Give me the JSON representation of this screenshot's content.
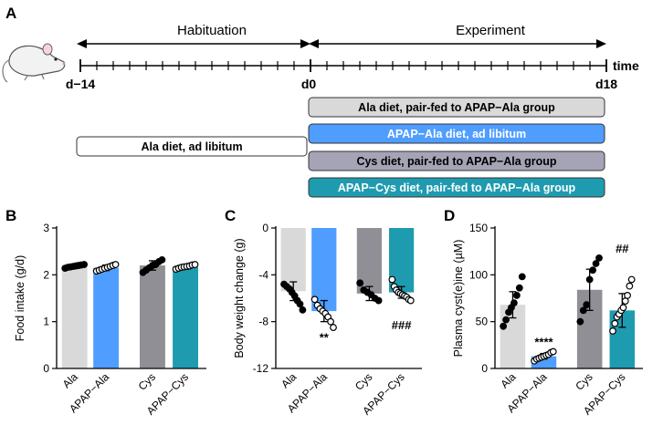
{
  "panels": {
    "A": "A",
    "B": "B",
    "C": "C",
    "D": "D"
  },
  "timeline": {
    "phase_left": "Habituation",
    "phase_right": "Experiment",
    "time_label": "time",
    "ticks": [
      "d−14",
      "d0",
      "d18"
    ],
    "n_divisions": 32
  },
  "diet_boxes": [
    {
      "label": "Ala diet, pair-fed to APAP−Ala  group",
      "fill": "#d9d9d9",
      "text_color": "#000000"
    },
    {
      "label": "APAP−Ala  diet, ad libitum",
      "fill": "#4f9dff",
      "text_color": "#ffffff"
    },
    {
      "label": "Cys diet, pair-fed to APAP−Ala  group",
      "fill": "#a4a4b6",
      "text_color": "#000000"
    },
    {
      "label": "APAP−Cys diet, pair-fed to APAP−Ala group",
      "fill": "#1f9bb0",
      "text_color": "#ffffff"
    },
    {
      "label": "Ala diet, ad libitum",
      "fill": "#ffffff",
      "text_color": "#000000"
    }
  ],
  "colors": {
    "Ala": "#d9d9d9",
    "APAP−Ala": "#4f9dff",
    "Cys": "#8f8f95",
    "APAP−Cys": "#1f9bb0"
  },
  "chart_data": [
    {
      "panel": "B",
      "type": "bar",
      "title": "",
      "ylabel": "Food intake (g/d)",
      "categories": [
        "Ala",
        "APAP−Ala",
        "Cys",
        "APAP−Cys"
      ],
      "values": [
        2.18,
        2.15,
        2.2,
        2.17
      ],
      "errors": [
        0.04,
        0.06,
        0.1,
        0.05
      ],
      "points": [
        [
          2.14,
          2.16,
          2.17,
          2.18,
          2.19,
          2.2,
          2.21,
          2.22
        ],
        [
          2.08,
          2.1,
          2.12,
          2.14,
          2.16,
          2.18,
          2.2,
          2.22
        ],
        [
          2.05,
          2.1,
          2.15,
          2.2,
          2.22,
          2.28,
          2.32
        ],
        [
          2.12,
          2.14,
          2.16,
          2.17,
          2.18,
          2.19,
          2.21,
          2.22
        ]
      ],
      "point_style": [
        "filled",
        "open",
        "filled",
        "open"
      ],
      "ylim": [
        0,
        3
      ],
      "yticks": [
        "0",
        "1",
        "2",
        "3"
      ],
      "annotations": [
        "",
        "",
        "",
        ""
      ]
    },
    {
      "panel": "C",
      "type": "bar",
      "title": "",
      "ylabel": "Body weight change (g)",
      "categories": [
        "Ala",
        "APAP−Ala",
        "Cys",
        "APAP−Cys"
      ],
      "values": [
        -5.4,
        -7.1,
        -5.6,
        -5.5
      ],
      "errors": [
        0.8,
        0.9,
        0.6,
        0.5
      ],
      "points": [
        [
          -4.8,
          -5.0,
          -5.2,
          -5.5,
          -5.8,
          -6.2,
          -6.5,
          -7.0
        ],
        [
          -6.1,
          -6.6,
          -6.9,
          -7.1,
          -7.3,
          -7.6,
          -8.0,
          -8.5
        ],
        [
          -4.7,
          -5.3,
          -5.5,
          -5.7,
          -6.0,
          -6.2
        ],
        [
          -4.4,
          -5.0,
          -5.3,
          -5.5,
          -5.6,
          -5.7,
          -5.8,
          -5.9,
          -6.1,
          -6.2
        ]
      ],
      "point_style": [
        "filled",
        "open",
        "filled",
        "open"
      ],
      "ylim": [
        -12,
        0
      ],
      "yticks": [
        "0",
        "-4",
        "-8",
        "-12"
      ],
      "annotations": [
        "",
        "**",
        "",
        "###"
      ]
    },
    {
      "panel": "D",
      "type": "bar",
      "title": "",
      "ylabel": "Plasma cyst(e)ine (µM)",
      "categories": [
        "Ala",
        "APAP−Ala",
        "Cys",
        "APAP−Cys"
      ],
      "values": [
        68,
        13,
        84,
        62
      ],
      "errors": [
        14,
        3,
        22,
        18
      ],
      "points": [
        [
          45,
          52,
          60,
          65,
          70,
          78,
          86,
          98
        ],
        [
          8,
          10,
          11,
          12,
          13,
          14,
          15,
          17,
          18
        ],
        [
          50,
          62,
          68,
          95,
          105,
          112,
          118
        ],
        [
          40,
          48,
          55,
          58,
          62,
          65,
          72,
          78,
          88,
          95
        ]
      ],
      "point_style": [
        "filled",
        "open",
        "filled",
        "open"
      ],
      "ylim": [
        0,
        150
      ],
      "yticks": [
        "0",
        "50",
        "100",
        "150"
      ],
      "annotations": [
        "",
        "****",
        "",
        "##"
      ]
    }
  ]
}
